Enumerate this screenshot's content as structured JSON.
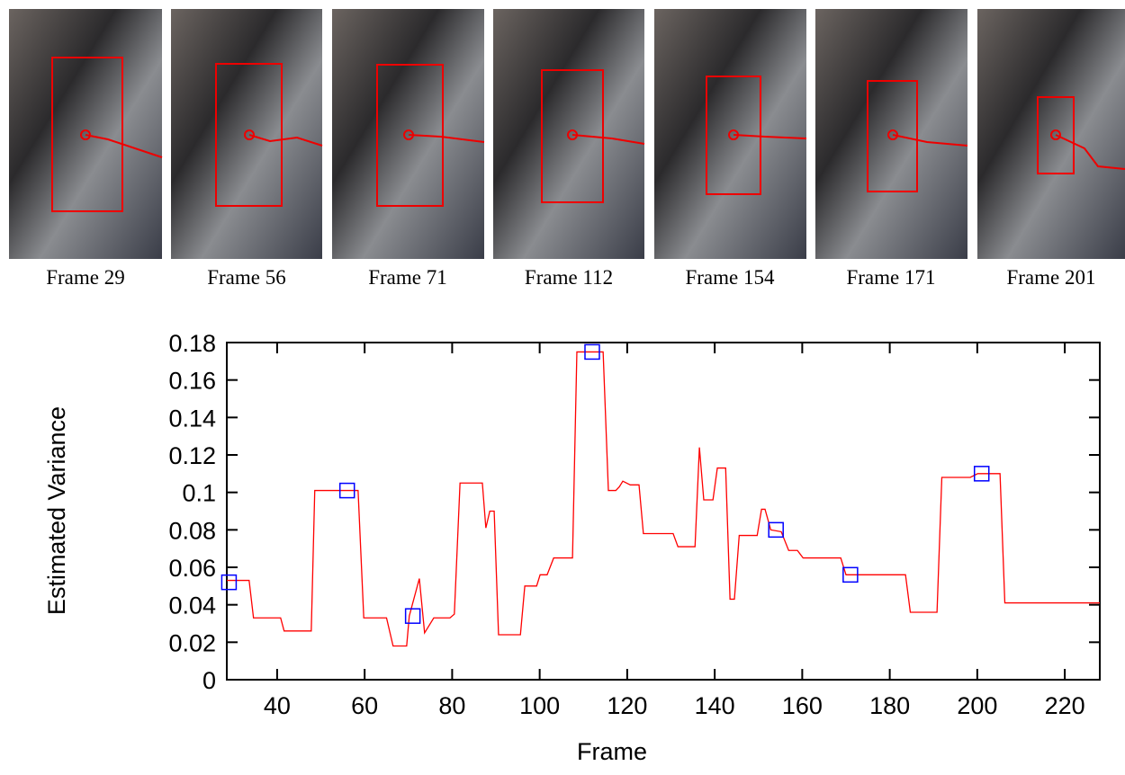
{
  "frames": [
    "Frame 29",
    "Frame 56",
    "Frame 71",
    "Frame 112",
    "Frame 154",
    "Frame 171",
    "Frame 201"
  ],
  "chart_data": {
    "type": "line",
    "xlabel": "Frame",
    "ylabel": "Estimated Variance",
    "xlim": [
      28.5,
      228
    ],
    "ylim": [
      0,
      0.18
    ],
    "xticks": [
      40,
      60,
      80,
      100,
      120,
      140,
      160,
      180,
      200,
      220
    ],
    "yticks": [
      0,
      0.02,
      0.04,
      0.06,
      0.08,
      0.1,
      0.12,
      0.14,
      0.16,
      0.18
    ],
    "series": [
      {
        "color": "#ff0000",
        "x": [
          28.5,
          33.6,
          34.6,
          40.8,
          41.6,
          47.8,
          48.6,
          58.5,
          59.8,
          65,
          66.5,
          69.6,
          70.2,
          72.5,
          73.7,
          75.8,
          79.5,
          80.5,
          81.8,
          86.9,
          87.7,
          88.6,
          89.6,
          90.6,
          95.6,
          96.6,
          99.3,
          100.1,
          101.7,
          103.2,
          107.5,
          108.5,
          114.5,
          115.7,
          117.4,
          118.2,
          119,
          120.7,
          122.7,
          123.7,
          130.5,
          131.6,
          135.5,
          136.5,
          137.5,
          139.6,
          140.6,
          142.5,
          143.5,
          144.5,
          145.6,
          149.7,
          150.7,
          151.5,
          152.8,
          155.2,
          156.9,
          158.9,
          160.2,
          168.8,
          170,
          183.6,
          184.7,
          190.8,
          191.9,
          198.4,
          200.1,
          205.2,
          206.3,
          228
        ],
        "values": [
          0.053,
          0.053,
          0.033,
          0.033,
          0.026,
          0.026,
          0.101,
          0.101,
          0.033,
          0.033,
          0.018,
          0.018,
          0.034,
          0.054,
          0.025,
          0.033,
          0.033,
          0.035,
          0.105,
          0.105,
          0.081,
          0.09,
          0.09,
          0.024,
          0.024,
          0.05,
          0.05,
          0.056,
          0.056,
          0.065,
          0.065,
          0.175,
          0.175,
          0.101,
          0.101,
          0.103,
          0.106,
          0.104,
          0.104,
          0.078,
          0.078,
          0.071,
          0.071,
          0.124,
          0.096,
          0.096,
          0.113,
          0.113,
          0.043,
          0.043,
          0.077,
          0.077,
          0.091,
          0.091,
          0.08,
          0.079,
          0.069,
          0.069,
          0.065,
          0.065,
          0.056,
          0.056,
          0.036,
          0.036,
          0.108,
          0.108,
          0.11,
          0.11,
          0.041,
          0.041
        ]
      },
      {
        "color": "#0000ff",
        "marker": "square",
        "x": [
          29,
          56,
          71,
          112,
          154,
          171,
          201
        ],
        "values": [
          0.052,
          0.101,
          0.034,
          0.175,
          0.08,
          0.056,
          0.11
        ]
      }
    ]
  }
}
